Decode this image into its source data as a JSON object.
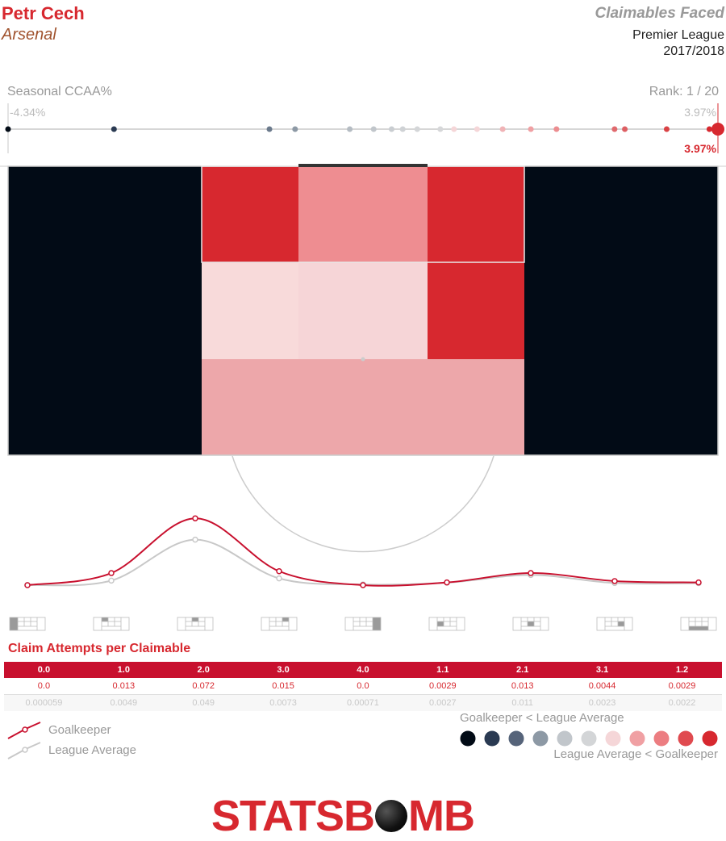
{
  "header": {
    "player": "Petr Cech",
    "team": "Arsenal",
    "title": "Claimables Faced",
    "competition": "Premier League",
    "season": "2017/2018"
  },
  "ccaa": {
    "label": "Seasonal CCAA%",
    "rank": "Rank: 1 / 20",
    "min_label": "-4.34%",
    "max_label": "3.97%",
    "gk_label": "3.97%",
    "min": -4.34,
    "max": 3.97,
    "gk_value": 3.97,
    "league_values": [
      -4.34,
      -3.1,
      -1.28,
      -0.98,
      -0.34,
      -0.06,
      0.15,
      0.28,
      0.45,
      0.72,
      0.88,
      1.15,
      1.45,
      1.78,
      2.08,
      2.76,
      2.88,
      3.37,
      3.87,
      3.97
    ],
    "league_colors": [
      "#020b16",
      "#2a3a52",
      "#6b7a8c",
      "#8d99a5",
      "#b5bcc3",
      "#c1c6cb",
      "#c9cdd1",
      "#cfd2d5",
      "#d4d6d8",
      "#d6d7d9",
      "#f5d6d8",
      "#f5d6d8",
      "#f0b3b6",
      "#f0a0a3",
      "#ec8d90",
      "#e06a6e",
      "#dd5f63",
      "#d94245",
      "#d7282f",
      "#d7282f"
    ]
  },
  "chart_data": [
    {
      "type": "heatmap",
      "title": "",
      "zones": [
        {
          "id": "1.0",
          "color": "#d7282f"
        },
        {
          "id": "2.0",
          "color": "#ee8d91"
        },
        {
          "id": "3.0",
          "color": "#d7282f"
        },
        {
          "id": "1.1",
          "color": "#f8dada"
        },
        {
          "id": "2.1",
          "color": "#f6d5d7"
        },
        {
          "id": "3.1",
          "color": "#d7282f"
        },
        {
          "id": "1.2",
          "color": "#eda7aa"
        },
        {
          "id": "0.0",
          "color": "#020b16"
        },
        {
          "id": "4.0",
          "color": "#020b16"
        }
      ]
    },
    {
      "type": "line",
      "title": "Claim Attempts per Claimable",
      "categories": [
        "0.0",
        "1.0",
        "2.0",
        "3.0",
        "4.0",
        "1.1",
        "2.1",
        "3.1",
        "1.2"
      ],
      "series": [
        {
          "name": "Goalkeeper",
          "values": [
            0.0,
            0.013,
            0.072,
            0.015,
            0.0,
            0.0029,
            0.013,
            0.0044,
            0.0029
          ],
          "labels": [
            "0.0",
            "0.013",
            "0.072",
            "0.015",
            "0.0",
            "0.0029",
            "0.013",
            "0.0044",
            "0.0029"
          ],
          "color": "#c8102e"
        },
        {
          "name": "League Average",
          "values": [
            5.9e-05,
            0.0049,
            0.049,
            0.0073,
            0.00071,
            0.0027,
            0.011,
            0.0023,
            0.0022
          ],
          "labels": [
            "0.000059",
            "0.0049",
            "0.049",
            "0.0073",
            "0.00071",
            "0.0027",
            "0.011",
            "0.0023",
            "0.0022"
          ],
          "color": "#c8c8c8"
        }
      ],
      "ylim": [
        0,
        0.08
      ]
    }
  ],
  "legend": {
    "goalkeeper": "Goalkeeper",
    "league_average": "League Average",
    "scale_low": "Goalkeeper < League Average",
    "scale_high": "League Average < Goalkeeper",
    "scale_colors": [
      "#020b16",
      "#2a3a52",
      "#56647a",
      "#8d99a5",
      "#c1c6cb",
      "#d3d5d7",
      "#f5d6d8",
      "#f0a0a3",
      "#ec7d81",
      "#e04a4f",
      "#d7282f"
    ]
  },
  "branding": {
    "logo_before": "STATSB",
    "logo_after": "MB"
  }
}
